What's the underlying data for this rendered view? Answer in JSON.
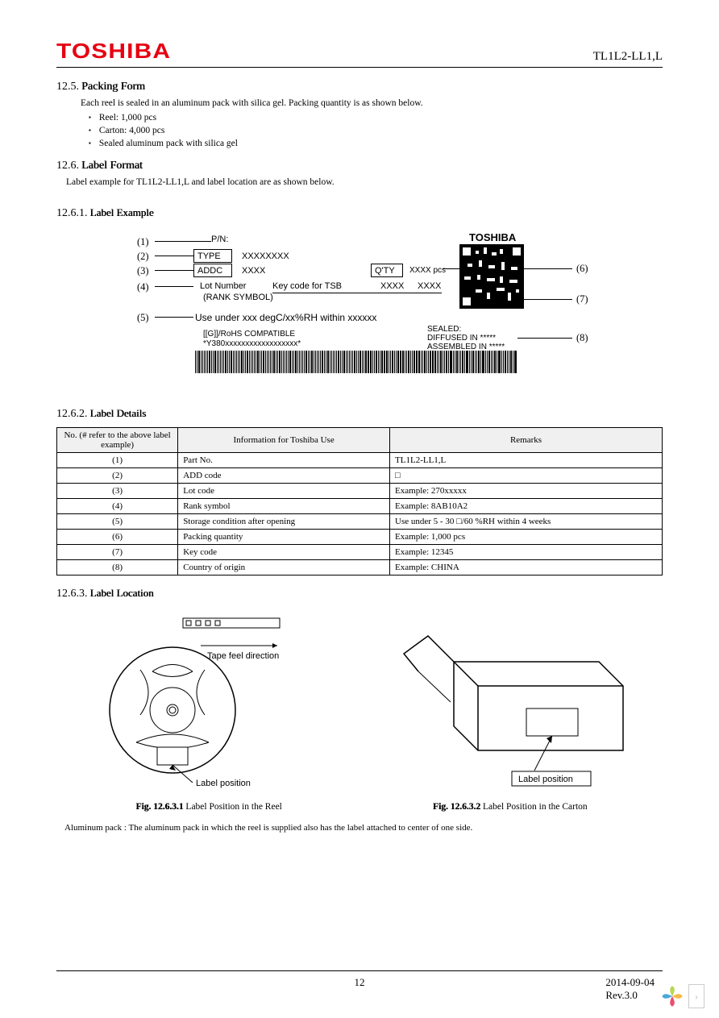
{
  "header": {
    "logo": "TOSHIBA",
    "part": "TL1L2-LL1,L"
  },
  "s125": {
    "num": "12.5.",
    "title": "Packing Form",
    "intro": "Each reel is sealed in an aluminum pack with silica gel. Packing quantity is as shown below.",
    "items": [
      "Reel: 1,000 pcs",
      "Carton: 4,000 pcs",
      "Sealed aluminum pack with silica gel"
    ]
  },
  "s126": {
    "num": "12.6.",
    "title": "Label Format",
    "intro": "Label example for TL1L2-LL1,L and label location are as shown below."
  },
  "s1261": {
    "num": "12.6.1.",
    "title": "Label Example"
  },
  "label": {
    "pn": "P/N:",
    "type": "TYPE",
    "typev": "XXXXXXXX",
    "addc": "ADDC",
    "addcv": "XXXX",
    "qty": "Q'TY",
    "qtyv": "XXXX pcs",
    "lot": "Lot Number",
    "key": "Key code for TSB",
    "lotv1": "XXXX",
    "lotv2": "XXXX",
    "rank": "(RANK SYMBOL)",
    "use": "Use under  xxx  degC/xx%RH within  xxxxxx",
    "rohs": "[[G]]/RoHS COMPATIBLE",
    "y380": "*Y380xxxxxxxxxxxxxxxxxx*",
    "sealed": "SEALED:",
    "diff": "DIFFUSED IN *****",
    "assm": "ASSEMBLED IN *****",
    "tosh": "TOSHIBA",
    "a1": "(1)",
    "a2": "(2)",
    "a3": "(3)",
    "a4": "(4)",
    "a5": "(5)",
    "a6": "(6)",
    "a7": "(7)",
    "a8": "(8)"
  },
  "s1262": {
    "num": "12.6.2.",
    "title": "Label Details"
  },
  "table": {
    "h1": "No. (# refer to the above label example)",
    "h2": "Information for Toshiba Use",
    "h3": "Remarks",
    "rows": [
      {
        "n": "(1)",
        "i": "Part No.",
        "r": "TL1L2-LL1,L"
      },
      {
        "n": "(2)",
        "i": "ADD code",
        "r": "□"
      },
      {
        "n": "(3)",
        "i": "Lot code",
        "r": "Example: 270xxxxx"
      },
      {
        "n": "(4)",
        "i": "Rank symbol",
        "r": "Example: 8AB10A2"
      },
      {
        "n": "(5)",
        "i": "Storage condition after opening",
        "r": "Use under 5 - 30 □/60 %RH within 4 weeks"
      },
      {
        "n": "(6)",
        "i": "Packing quantity",
        "r": "Example: 1,000 pcs"
      },
      {
        "n": "(7)",
        "i": "Key code",
        "r": "Example: 12345"
      },
      {
        "n": "(8)",
        "i": "Country of origin",
        "r": "Example: CHINA"
      }
    ]
  },
  "s1263": {
    "num": "12.6.3.",
    "title": "Label Location"
  },
  "reel": {
    "tape": "Tape feel direction",
    "lbl": "Label position",
    "cap1a": "Fig. 12.6.3.1",
    "cap1b": " Label Position in the Reel",
    "cap2a": "Fig. 12.6.3.2",
    "cap2b": " Label Position in the Carton"
  },
  "note": "Aluminum pack : The aluminum pack in which the reel is supplied also has the label attached to center of one side.",
  "footer": {
    "page": "12",
    "date": "2014-09-04",
    "rev": "Rev.3.0"
  }
}
